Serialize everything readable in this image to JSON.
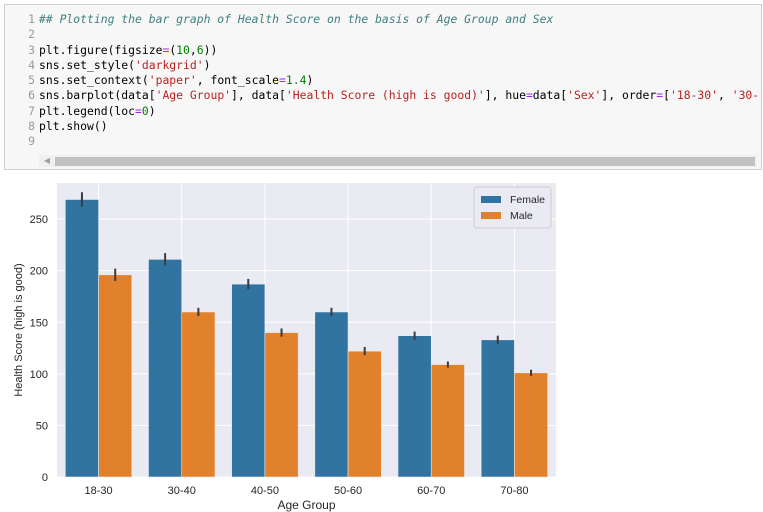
{
  "code_cell": {
    "lines": [
      {
        "n": "1",
        "tokens": [
          {
            "t": "## Plotting the bar graph of Health Score on the basis of Age Group and Sex",
            "c": "cmt"
          }
        ]
      },
      {
        "n": "2",
        "tokens": []
      },
      {
        "n": "3",
        "tokens": [
          {
            "t": "plt.figure(figsize",
            "c": ""
          },
          {
            "t": "=",
            "c": "op"
          },
          {
            "t": "(",
            "c": ""
          },
          {
            "t": "10",
            "c": "num"
          },
          {
            "t": ",",
            "c": ""
          },
          {
            "t": "6",
            "c": "num"
          },
          {
            "t": "))",
            "c": ""
          }
        ]
      },
      {
        "n": "4",
        "tokens": [
          {
            "t": "sns.set_style(",
            "c": ""
          },
          {
            "t": "'darkgrid'",
            "c": "str"
          },
          {
            "t": ")",
            "c": ""
          }
        ]
      },
      {
        "n": "5",
        "tokens": [
          {
            "t": "sns.set_context(",
            "c": ""
          },
          {
            "t": "'paper'",
            "c": "str"
          },
          {
            "t": ", font_scale",
            "c": ""
          },
          {
            "t": "=",
            "c": "op"
          },
          {
            "t": "1.4",
            "c": "num"
          },
          {
            "t": ")",
            "c": ""
          }
        ]
      },
      {
        "n": "6",
        "tokens": [
          {
            "t": "sns.barplot(data[",
            "c": ""
          },
          {
            "t": "'Age Group'",
            "c": "str"
          },
          {
            "t": "], data[",
            "c": ""
          },
          {
            "t": "'Health Score (high is good)'",
            "c": "str"
          },
          {
            "t": "], hue",
            "c": ""
          },
          {
            "t": "=",
            "c": "op"
          },
          {
            "t": "data[",
            "c": ""
          },
          {
            "t": "'Sex'",
            "c": "str"
          },
          {
            "t": "], order",
            "c": ""
          },
          {
            "t": "=",
            "c": "op"
          },
          {
            "t": "[",
            "c": ""
          },
          {
            "t": "'18-30'",
            "c": "str"
          },
          {
            "t": ", ",
            "c": ""
          },
          {
            "t": "'30-",
            "c": "str"
          }
        ]
      },
      {
        "n": "7",
        "tokens": [
          {
            "t": "plt.legend(loc",
            "c": ""
          },
          {
            "t": "=",
            "c": "op"
          },
          {
            "t": "0",
            "c": "num"
          },
          {
            "t": ")",
            "c": ""
          }
        ]
      },
      {
        "n": "8",
        "tokens": [
          {
            "t": "plt.show()",
            "c": ""
          }
        ]
      },
      {
        "n": "9",
        "tokens": []
      }
    ],
    "scroll_arrow": "◀"
  },
  "chart_data": {
    "type": "bar",
    "categories": [
      "18-30",
      "30-40",
      "40-50",
      "50-60",
      "60-70",
      "70-80"
    ],
    "series": [
      {
        "name": "Female",
        "color": "#3274a1",
        "values": [
          269,
          211,
          187,
          160,
          137,
          133
        ],
        "err": [
          7,
          6,
          5,
          4,
          4,
          4
        ]
      },
      {
        "name": "Male",
        "color": "#e1812c",
        "values": [
          196,
          160,
          140,
          122,
          109,
          101
        ],
        "err": [
          6,
          4,
          4,
          4,
          3,
          3
        ]
      }
    ],
    "xlabel": "Age Group",
    "ylabel": "Health Score (high is good)",
    "ylim": [
      0,
      285
    ],
    "yticks": [
      0,
      50,
      100,
      150,
      200,
      250
    ],
    "legend_loc": "top-right",
    "grid": true,
    "background": "#eaeaf2"
  }
}
